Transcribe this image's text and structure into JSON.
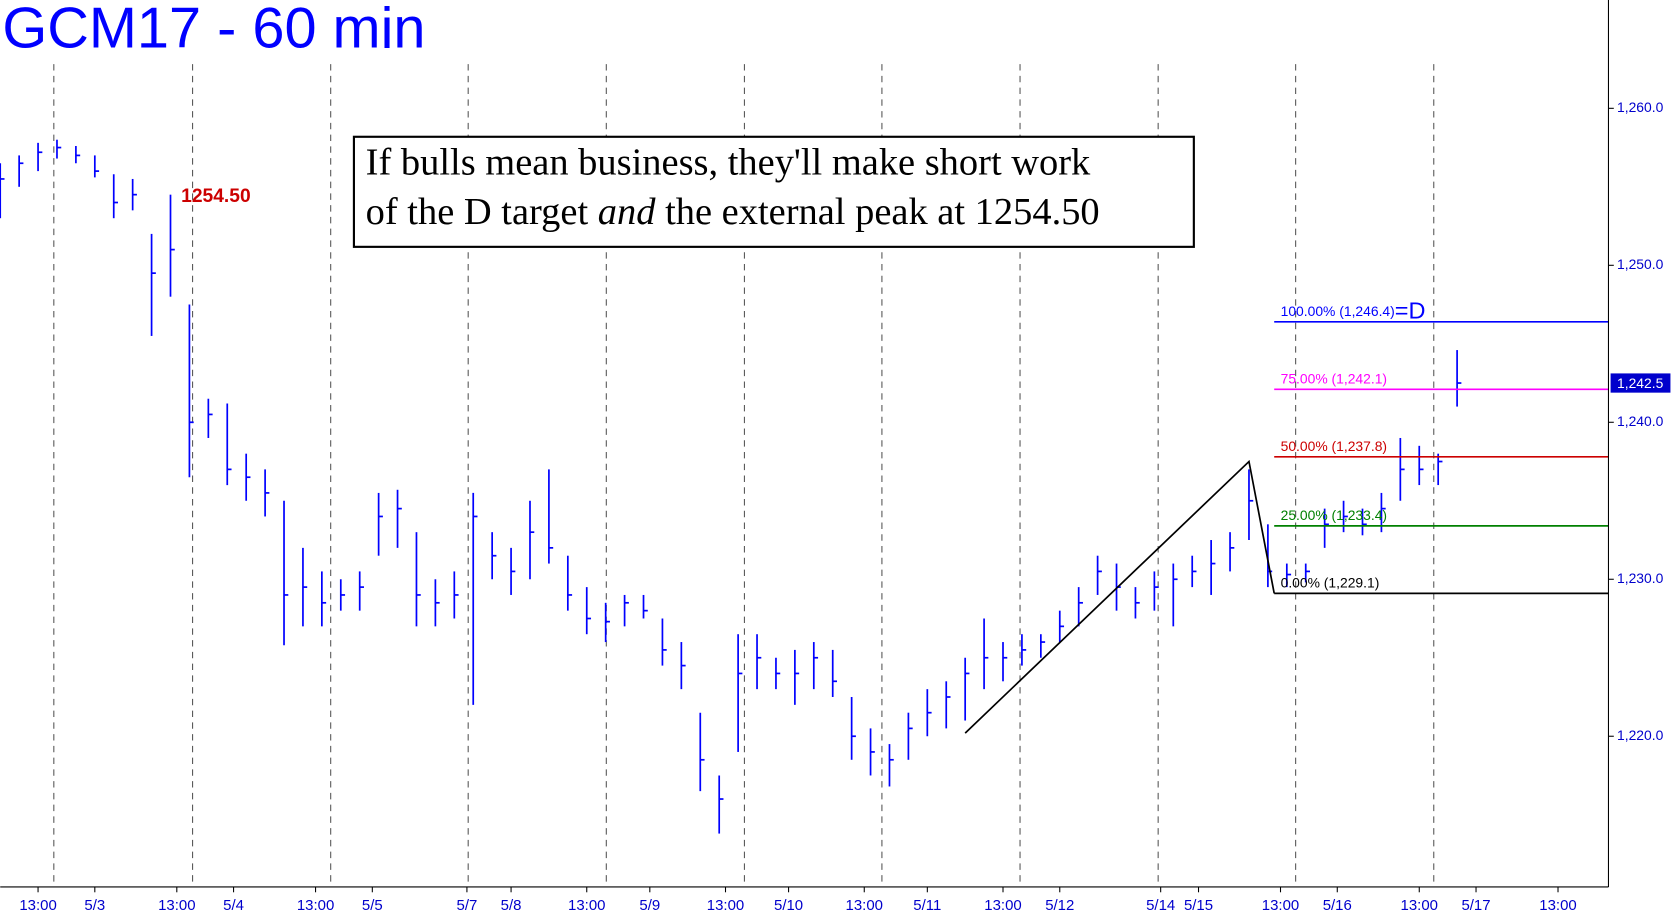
{
  "chart_data": {
    "type": "ohlc",
    "title": "GCM17 - 60 min",
    "color": "#0000ff",
    "annotation": {
      "line1": "If bulls mean business, they'll make short work",
      "line2_before": "of the D target",
      "line2_em": "and",
      "line2_after": "the external peak at 1254.50"
    },
    "x": [
      0,
      3,
      6,
      9,
      12,
      15,
      18,
      21,
      24,
      27,
      30,
      33,
      36,
      39,
      42,
      45,
      48,
      51,
      54,
      57,
      60,
      63,
      66,
      69,
      72,
      75,
      78,
      81,
      84,
      87,
      90,
      93,
      96,
      99,
      102,
      105,
      108,
      111,
      114,
      117,
      120,
      123,
      126,
      129,
      132,
      135,
      138,
      141,
      144,
      147,
      150,
      153,
      156,
      159,
      162,
      165,
      168,
      171,
      174,
      177,
      180,
      183,
      186,
      189,
      192,
      195,
      198,
      201,
      204,
      207,
      210,
      213,
      216,
      219,
      222,
      225,
      228,
      231
    ],
    "high": [
      1256.5,
      1257,
      1257.8,
      1258,
      1257.6,
      1257,
      1255.8,
      1255.5,
      1252,
      1254.5,
      1247.5,
      1241.5,
      1241.2,
      1238,
      1237,
      1235,
      1232,
      1230.5,
      1230,
      1230.5,
      1235.5,
      1235.7,
      1233,
      1230,
      1230.5,
      1235.5,
      1233,
      1232,
      1235,
      1237,
      1231.5,
      1229.5,
      1228.5,
      1229,
      1229,
      1227.5,
      1226,
      1221.5,
      1217.5,
      1226.5,
      1226.5,
      1225,
      1225.5,
      1226,
      1225.5,
      1222.5,
      1220.5,
      1219.5,
      1221.5,
      1223,
      1223.5,
      1225,
      1227.5,
      1226,
      1226.5,
      1226.5,
      1228,
      1229.5,
      1231.5,
      1231,
      1229.5,
      1230.5,
      1231,
      1231.5,
      1232.5,
      1233,
      1237,
      1233.5,
      1231,
      1231,
      1234.5,
      1235,
      1234.5,
      1235.5,
      1239,
      1238.5,
      1238,
      1244.6
    ],
    "low": [
      1253,
      1255,
      1256,
      1256.8,
      1256.5,
      1255.6,
      1253,
      1253.5,
      1245.5,
      1248,
      1236.5,
      1239,
      1236,
      1235,
      1234,
      1225.8,
      1227,
      1227,
      1228,
      1228,
      1231.5,
      1232,
      1227,
      1227,
      1227.5,
      1222,
      1230,
      1229,
      1230,
      1231,
      1228,
      1226.5,
      1226,
      1227,
      1227.5,
      1224.5,
      1223,
      1216.5,
      1213.8,
      1219,
      1223,
      1223,
      1222,
      1223,
      1222.5,
      1218.5,
      1217.5,
      1216.8,
      1218.5,
      1220,
      1220.5,
      1221,
      1223,
      1223.5,
      1224.5,
      1225,
      1226,
      1227,
      1229,
      1228,
      1227.5,
      1228,
      1227,
      1229.5,
      1229,
      1230.5,
      1232.5,
      1229.5,
      1229.5,
      1229.8,
      1232,
      1233,
      1232.8,
      1233,
      1235,
      1236,
      1236,
      1241
    ],
    "close": [
      1255.5,
      1256.5,
      1257.2,
      1257.5,
      1257,
      1256,
      1254,
      1254.5,
      1249.5,
      1251,
      1240,
      1240.5,
      1237,
      1236.5,
      1235.5,
      1229,
      1229.5,
      1228.5,
      1229,
      1229.5,
      1234,
      1234.5,
      1229,
      1228.5,
      1229,
      1234,
      1231.5,
      1230.5,
      1233,
      1232,
      1229,
      1227.5,
      1227.3,
      1228.5,
      1228,
      1225.5,
      1224.5,
      1218.5,
      1216,
      1224,
      1225,
      1224,
      1224,
      1225,
      1223.5,
      1220,
      1219,
      1218.5,
      1220.5,
      1221.5,
      1222.5,
      1224,
      1225,
      1225,
      1225.5,
      1226,
      1227,
      1228.5,
      1230.5,
      1229.5,
      1228.5,
      1229.5,
      1230,
      1230.5,
      1231,
      1232,
      1235,
      1230.5,
      1230.3,
      1230.5,
      1233.5,
      1234,
      1233.5,
      1234.5,
      1237,
      1237,
      1237.5,
      1242.5
    ],
    "xlim": [
      0,
      255
    ],
    "ylim": [
      1210.4,
      1266.9
    ],
    "yticks": [
      {
        "value": 1220,
        "label": "1,220.0"
      },
      {
        "value": 1230,
        "label": "1,230.0"
      },
      {
        "value": 1240,
        "label": "1,240.0"
      },
      {
        "value": 1250,
        "label": "1,250.0"
      },
      {
        "value": 1260,
        "label": "1,260.0"
      }
    ],
    "xticks": [
      {
        "value": 6,
        "label": "13:00"
      },
      {
        "value": 15,
        "label": "5/3"
      },
      {
        "value": 28,
        "label": "13:00"
      },
      {
        "value": 37,
        "label": "5/4"
      },
      {
        "value": 50,
        "label": "13:00"
      },
      {
        "value": 59,
        "label": "5/5"
      },
      {
        "value": 74,
        "label": "5/7"
      },
      {
        "value": 81,
        "label": "5/8"
      },
      {
        "value": 93,
        "label": "13:00"
      },
      {
        "value": 103,
        "label": "5/9"
      },
      {
        "value": 115,
        "label": "13:00"
      },
      {
        "value": 125,
        "label": "5/10"
      },
      {
        "value": 137,
        "label": "13:00"
      },
      {
        "value": 147,
        "label": "5/11"
      },
      {
        "value": 159,
        "label": "13:00"
      },
      {
        "value": 168,
        "label": "5/12"
      },
      {
        "value": 184,
        "label": "5/14"
      },
      {
        "value": 190,
        "label": "5/15"
      },
      {
        "value": 203,
        "label": "13:00"
      },
      {
        "value": 212,
        "label": "5/16"
      },
      {
        "value": 225,
        "label": "13:00"
      },
      {
        "value": 234,
        "label": "5/17"
      },
      {
        "value": 247,
        "label": "13:00"
      }
    ],
    "session_lines": [
      8.5,
      30.5,
      52.4,
      74.2,
      96.1,
      118,
      139.8,
      161.7,
      183.6,
      205.4,
      227.3
    ],
    "peak": {
      "x": 27,
      "value": 1254.5,
      "label": "1254.50",
      "color": "#cc0000"
    },
    "pattern": {
      "x": [
        153,
        198,
        202
      ],
      "y": [
        1220.2,
        1237.5,
        1229.1
      ]
    },
    "fib_start": 202,
    "fib_levels": [
      {
        "value": 1246.4,
        "label": "100.00% (1,246.4)",
        "color": "#0000ff"
      },
      {
        "value": 1242.1,
        "label": "75.00% (1,242.1)",
        "color": "#ff00ff"
      },
      {
        "value": 1237.8,
        "label": "50.00% (1,237.8)",
        "color": "#cc0000"
      },
      {
        "value": 1233.4,
        "label": "25.00% (1,233.4)",
        "color": "#008000"
      },
      {
        "value": 1229.1,
        "label": "0.00% (1,229.1)",
        "color": "#000000"
      }
    ],
    "target_label": "=D",
    "last_price": {
      "value": 1242.5,
      "label": "1,242.5"
    }
  }
}
